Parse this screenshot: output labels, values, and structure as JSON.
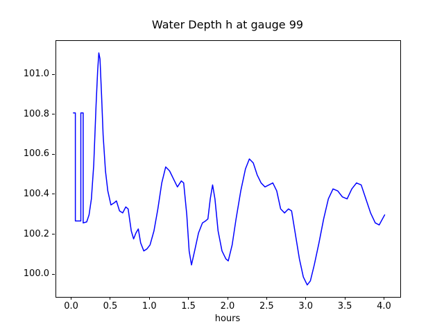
{
  "chart_data": {
    "type": "line",
    "title": "Water Depth h at gauge 99",
    "xlabel": "hours",
    "ylabel": "",
    "grid": false,
    "legend_position": "none",
    "line_color": "#0000ff",
    "line_width": 1.5,
    "xlim": [
      -0.2,
      4.2
    ],
    "ylim": [
      99.89,
      101.17
    ],
    "xticks": {
      "values": [
        0.0,
        0.5,
        1.0,
        1.5,
        2.0,
        2.5,
        3.0,
        3.5,
        4.0
      ],
      "labels": [
        "0.0",
        "0.5",
        "1.0",
        "1.5",
        "2.0",
        "2.5",
        "3.0",
        "3.5",
        "4.0"
      ]
    },
    "yticks": {
      "values": [
        100.0,
        100.2,
        100.4,
        100.6,
        100.8,
        101.0
      ],
      "labels": [
        "100.0",
        "100.2",
        "100.4",
        "100.6",
        "100.8",
        "101.0"
      ]
    },
    "series": [
      {
        "name": "water-depth-h",
        "color": "#0000ff",
        "x": [
          0.02,
          0.045,
          0.045,
          0.115,
          0.115,
          0.145,
          0.145,
          0.19,
          0.22,
          0.25,
          0.28,
          0.31,
          0.33,
          0.345,
          0.36,
          0.38,
          0.4,
          0.43,
          0.46,
          0.5,
          0.54,
          0.57,
          0.61,
          0.65,
          0.69,
          0.72,
          0.76,
          0.79,
          0.82,
          0.85,
          0.88,
          0.92,
          0.96,
          1.0,
          1.05,
          1.1,
          1.15,
          1.2,
          1.25,
          1.3,
          1.35,
          1.4,
          1.43,
          1.47,
          1.5,
          1.53,
          1.57,
          1.62,
          1.67,
          1.71,
          1.74,
          1.77,
          1.8,
          1.83,
          1.87,
          1.92,
          1.97,
          2.0,
          2.05,
          2.1,
          2.16,
          2.22,
          2.27,
          2.32,
          2.37,
          2.42,
          2.47,
          2.52,
          2.57,
          2.62,
          2.67,
          2.72,
          2.77,
          2.81,
          2.86,
          2.91,
          2.96,
          3.01,
          3.05,
          3.1,
          3.16,
          3.22,
          3.28,
          3.34,
          3.4,
          3.46,
          3.52,
          3.58,
          3.64,
          3.7,
          3.76,
          3.82,
          3.88,
          3.93,
          4.0
        ],
        "y": [
          100.81,
          100.81,
          100.27,
          100.27,
          100.81,
          100.81,
          100.26,
          100.265,
          100.3,
          100.38,
          100.55,
          100.85,
          101.02,
          101.11,
          101.08,
          100.9,
          100.7,
          100.52,
          100.42,
          100.35,
          100.36,
          100.37,
          100.32,
          100.31,
          100.34,
          100.33,
          100.22,
          100.18,
          100.21,
          100.23,
          100.16,
          100.12,
          100.13,
          100.15,
          100.22,
          100.33,
          100.46,
          100.54,
          100.52,
          100.48,
          100.44,
          100.47,
          100.46,
          100.3,
          100.12,
          100.05,
          100.12,
          100.21,
          100.26,
          100.27,
          100.28,
          100.38,
          100.45,
          100.38,
          100.22,
          100.12,
          100.08,
          100.07,
          100.15,
          100.28,
          100.42,
          100.53,
          100.58,
          100.56,
          100.5,
          100.46,
          100.44,
          100.45,
          100.46,
          100.42,
          100.33,
          100.31,
          100.33,
          100.32,
          100.2,
          100.08,
          99.99,
          99.95,
          99.97,
          100.05,
          100.16,
          100.28,
          100.38,
          100.43,
          100.42,
          100.39,
          100.38,
          100.43,
          100.46,
          100.45,
          100.38,
          100.31,
          100.26,
          100.25,
          100.3
        ]
      }
    ]
  }
}
